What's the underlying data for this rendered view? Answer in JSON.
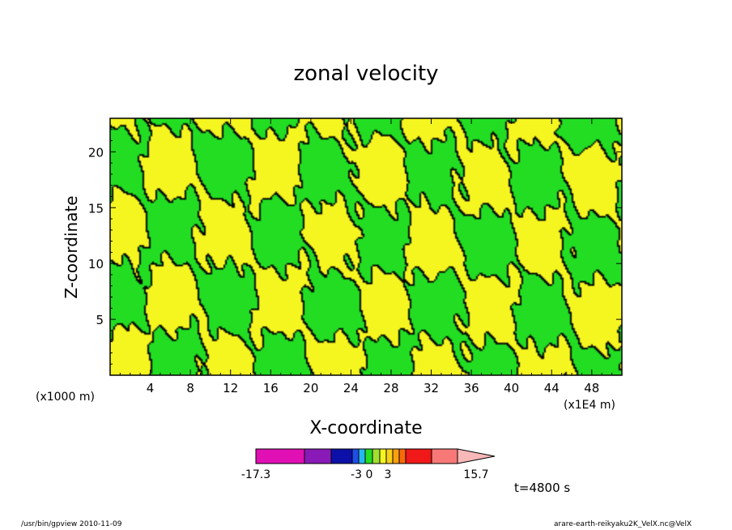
{
  "chart_data": {
    "type": "heatmap",
    "title": "zonal velocity",
    "xlabel": "X-coordinate",
    "ylabel": "Z-coordinate",
    "x_unit_label": "(x1E4 m)",
    "y_unit_label": "(x1000 m)",
    "xlim": [
      0,
      51
    ],
    "ylim": [
      0,
      23
    ],
    "x_ticks": [
      4,
      8,
      12,
      16,
      20,
      24,
      28,
      32,
      36,
      40,
      44,
      48
    ],
    "y_ticks": [
      5,
      10,
      15,
      20
    ],
    "field_colors": {
      "positive": "#f5f520",
      "negative": "#22dd22",
      "contour": "#000000"
    },
    "colorbar": {
      "tick_labels": [
        "-17.3",
        "-3",
        "0",
        "3",
        "15.7"
      ],
      "colors": [
        "#e010b4",
        "#8a1ab8",
        "#0c10a8",
        "#1e4ee6",
        "#24b8f0",
        "#22dd22",
        "#a0e030",
        "#f5f520",
        "#f8d018",
        "#f8a010",
        "#f86a08",
        "#f01818",
        "#f87878",
        "#f8b8b8"
      ]
    },
    "time_label": "t=4800 s"
  },
  "footer": {
    "left": "/usr/bin/gpview   2010-11-09",
    "right": "arare-earth-reikyaku2K_VelX.nc@VelX"
  }
}
